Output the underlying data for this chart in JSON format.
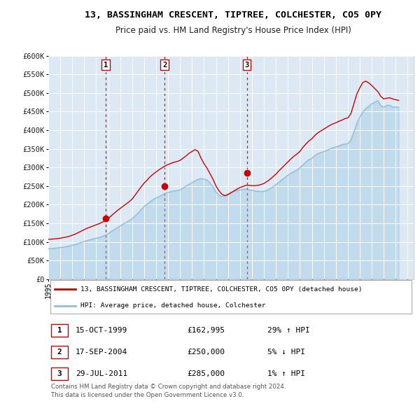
{
  "title": "13, BASSINGHAM CRESCENT, TIPTREE, COLCHESTER, CO5 0PY",
  "subtitle": "Price paid vs. HM Land Registry's House Price Index (HPI)",
  "background_color": "#ffffff",
  "plot_bg_color": "#dce9f5",
  "grid_color": "#ffffff",
  "ylim": [
    0,
    600000
  ],
  "yticks": [
    0,
    50000,
    100000,
    150000,
    200000,
    250000,
    300000,
    350000,
    400000,
    450000,
    500000,
    550000,
    600000
  ],
  "xlim_start": 1995.0,
  "xlim_end": 2025.5,
  "sale_dates": [
    1999.79,
    2004.71,
    2011.57
  ],
  "sale_prices": [
    162995,
    250000,
    285000
  ],
  "sale_labels": [
    "1",
    "2",
    "3"
  ],
  "hpi_line_color": "#8fbfdc",
  "price_line_color": "#cc0000",
  "sale_marker_color": "#cc0000",
  "vline_color": "#cc0000",
  "legend_label_price": "13, BASSINGHAM CRESCENT, TIPTREE, COLCHESTER, CO5 0PY (detached house)",
  "legend_label_hpi": "HPI: Average price, detached house, Colchester",
  "table_rows": [
    {
      "num": "1",
      "date": "15-OCT-1999",
      "price": "£162,995",
      "hpi": "29% ↑ HPI"
    },
    {
      "num": "2",
      "date": "17-SEP-2004",
      "price": "£250,000",
      "hpi": "5% ↓ HPI"
    },
    {
      "num": "3",
      "date": "29-JUL-2011",
      "price": "£285,000",
      "hpi": "1% ↑ HPI"
    }
  ],
  "footnote": "Contains HM Land Registry data © Crown copyright and database right 2024.\nThis data is licensed under the Open Government Licence v3.0.",
  "hpi_x": [
    1995.0,
    1995.25,
    1995.5,
    1995.75,
    1996.0,
    1996.25,
    1996.5,
    1996.75,
    1997.0,
    1997.25,
    1997.5,
    1997.75,
    1998.0,
    1998.25,
    1998.5,
    1998.75,
    1999.0,
    1999.25,
    1999.5,
    1999.75,
    2000.0,
    2000.25,
    2000.5,
    2000.75,
    2001.0,
    2001.25,
    2001.5,
    2001.75,
    2002.0,
    2002.25,
    2002.5,
    2002.75,
    2003.0,
    2003.25,
    2003.5,
    2003.75,
    2004.0,
    2004.25,
    2004.5,
    2004.75,
    2005.0,
    2005.25,
    2005.5,
    2005.75,
    2006.0,
    2006.25,
    2006.5,
    2006.75,
    2007.0,
    2007.25,
    2007.5,
    2007.75,
    2008.0,
    2008.25,
    2008.5,
    2008.75,
    2009.0,
    2009.25,
    2009.5,
    2009.75,
    2010.0,
    2010.25,
    2010.5,
    2010.75,
    2011.0,
    2011.25,
    2011.5,
    2011.75,
    2012.0,
    2012.25,
    2012.5,
    2012.75,
    2013.0,
    2013.25,
    2013.5,
    2013.75,
    2014.0,
    2014.25,
    2014.5,
    2014.75,
    2015.0,
    2015.25,
    2015.5,
    2015.75,
    2016.0,
    2016.25,
    2016.5,
    2016.75,
    2017.0,
    2017.25,
    2017.5,
    2017.75,
    2018.0,
    2018.25,
    2018.5,
    2018.75,
    2019.0,
    2019.25,
    2019.5,
    2019.75,
    2020.0,
    2020.25,
    2020.5,
    2020.75,
    2021.0,
    2021.25,
    2021.5,
    2021.75,
    2022.0,
    2022.25,
    2022.5,
    2022.75,
    2023.0,
    2023.25,
    2023.5,
    2023.75,
    2024.0,
    2024.25
  ],
  "hpi_y": [
    82000,
    82500,
    83000,
    84000,
    85000,
    86000,
    87500,
    89000,
    91000,
    93000,
    96000,
    99000,
    101000,
    104000,
    106000,
    108000,
    110000,
    112000,
    115000,
    118000,
    122000,
    128000,
    133000,
    138000,
    143000,
    148000,
    153000,
    157000,
    162000,
    170000,
    178000,
    187000,
    195000,
    201000,
    208000,
    214000,
    218000,
    222000,
    226000,
    230000,
    233000,
    235000,
    237000,
    238000,
    240000,
    245000,
    250000,
    255000,
    259000,
    264000,
    268000,
    270000,
    269000,
    266000,
    259000,
    247000,
    234000,
    225000,
    222000,
    225000,
    229000,
    233000,
    236000,
    238000,
    240000,
    241000,
    242000,
    240000,
    238000,
    237000,
    236000,
    235000,
    236000,
    239000,
    243000,
    248000,
    254000,
    260000,
    267000,
    273000,
    279000,
    285000,
    289000,
    293000,
    299000,
    307000,
    315000,
    321000,
    325000,
    332000,
    337000,
    340000,
    343000,
    346000,
    350000,
    353000,
    355000,
    358000,
    361000,
    363000,
    364000,
    373000,
    395000,
    418000,
    435000,
    449000,
    458000,
    465000,
    471000,
    475000,
    480000,
    466000,
    462000,
    467000,
    467000,
    462000,
    462000,
    462000
  ],
  "price_x": [
    1995.0,
    1995.25,
    1995.5,
    1995.75,
    1996.0,
    1996.25,
    1996.5,
    1996.75,
    1997.0,
    1997.25,
    1997.5,
    1997.75,
    1998.0,
    1998.25,
    1998.5,
    1998.75,
    1999.0,
    1999.25,
    1999.5,
    1999.75,
    2000.0,
    2000.25,
    2000.5,
    2000.75,
    2001.0,
    2001.25,
    2001.5,
    2001.75,
    2002.0,
    2002.25,
    2002.5,
    2002.75,
    2003.0,
    2003.25,
    2003.5,
    2003.75,
    2004.0,
    2004.25,
    2004.5,
    2004.75,
    2005.0,
    2005.25,
    2005.5,
    2005.75,
    2006.0,
    2006.25,
    2006.5,
    2006.75,
    2007.0,
    2007.25,
    2007.5,
    2007.75,
    2008.0,
    2008.25,
    2008.5,
    2008.75,
    2009.0,
    2009.25,
    2009.5,
    2009.75,
    2010.0,
    2010.25,
    2010.5,
    2010.75,
    2011.0,
    2011.25,
    2011.5,
    2011.75,
    2012.0,
    2012.25,
    2012.5,
    2012.75,
    2013.0,
    2013.25,
    2013.5,
    2013.75,
    2014.0,
    2014.25,
    2014.5,
    2014.75,
    2015.0,
    2015.25,
    2015.5,
    2015.75,
    2016.0,
    2016.25,
    2016.5,
    2016.75,
    2017.0,
    2017.25,
    2017.5,
    2017.75,
    2018.0,
    2018.25,
    2018.5,
    2018.75,
    2019.0,
    2019.25,
    2019.5,
    2019.75,
    2020.0,
    2020.25,
    2020.5,
    2020.75,
    2021.0,
    2021.25,
    2021.5,
    2021.75,
    2022.0,
    2022.25,
    2022.5,
    2022.75,
    2023.0,
    2023.25,
    2023.5,
    2023.75,
    2024.0,
    2024.25
  ],
  "price_y": [
    107000,
    107500,
    108000,
    109000,
    110000,
    111500,
    113000,
    115000,
    118000,
    121000,
    125000,
    129000,
    133000,
    137000,
    140000,
    143000,
    146000,
    149000,
    153000,
    157000,
    163000,
    170000,
    177000,
    184000,
    190000,
    196000,
    202000,
    208000,
    215000,
    226000,
    237000,
    248000,
    258000,
    266000,
    275000,
    282000,
    288000,
    294000,
    299000,
    304000,
    308000,
    311000,
    314000,
    316000,
    319000,
    325000,
    331000,
    338000,
    343000,
    348000,
    343000,
    325000,
    310000,
    298000,
    283000,
    268000,
    250000,
    237000,
    228000,
    224000,
    227000,
    232000,
    237000,
    242000,
    246000,
    249000,
    252000,
    252000,
    251000,
    251000,
    252000,
    254000,
    257000,
    262000,
    268000,
    275000,
    282000,
    291000,
    299000,
    307000,
    315000,
    323000,
    330000,
    336000,
    343000,
    354000,
    363000,
    371000,
    377000,
    386000,
    393000,
    398000,
    403000,
    408000,
    413000,
    417000,
    420000,
    424000,
    427000,
    431000,
    433000,
    444000,
    470000,
    497000,
    514000,
    528000,
    532000,
    527000,
    520000,
    512000,
    504000,
    491000,
    484000,
    486000,
    487000,
    484000,
    482000,
    480000
  ]
}
